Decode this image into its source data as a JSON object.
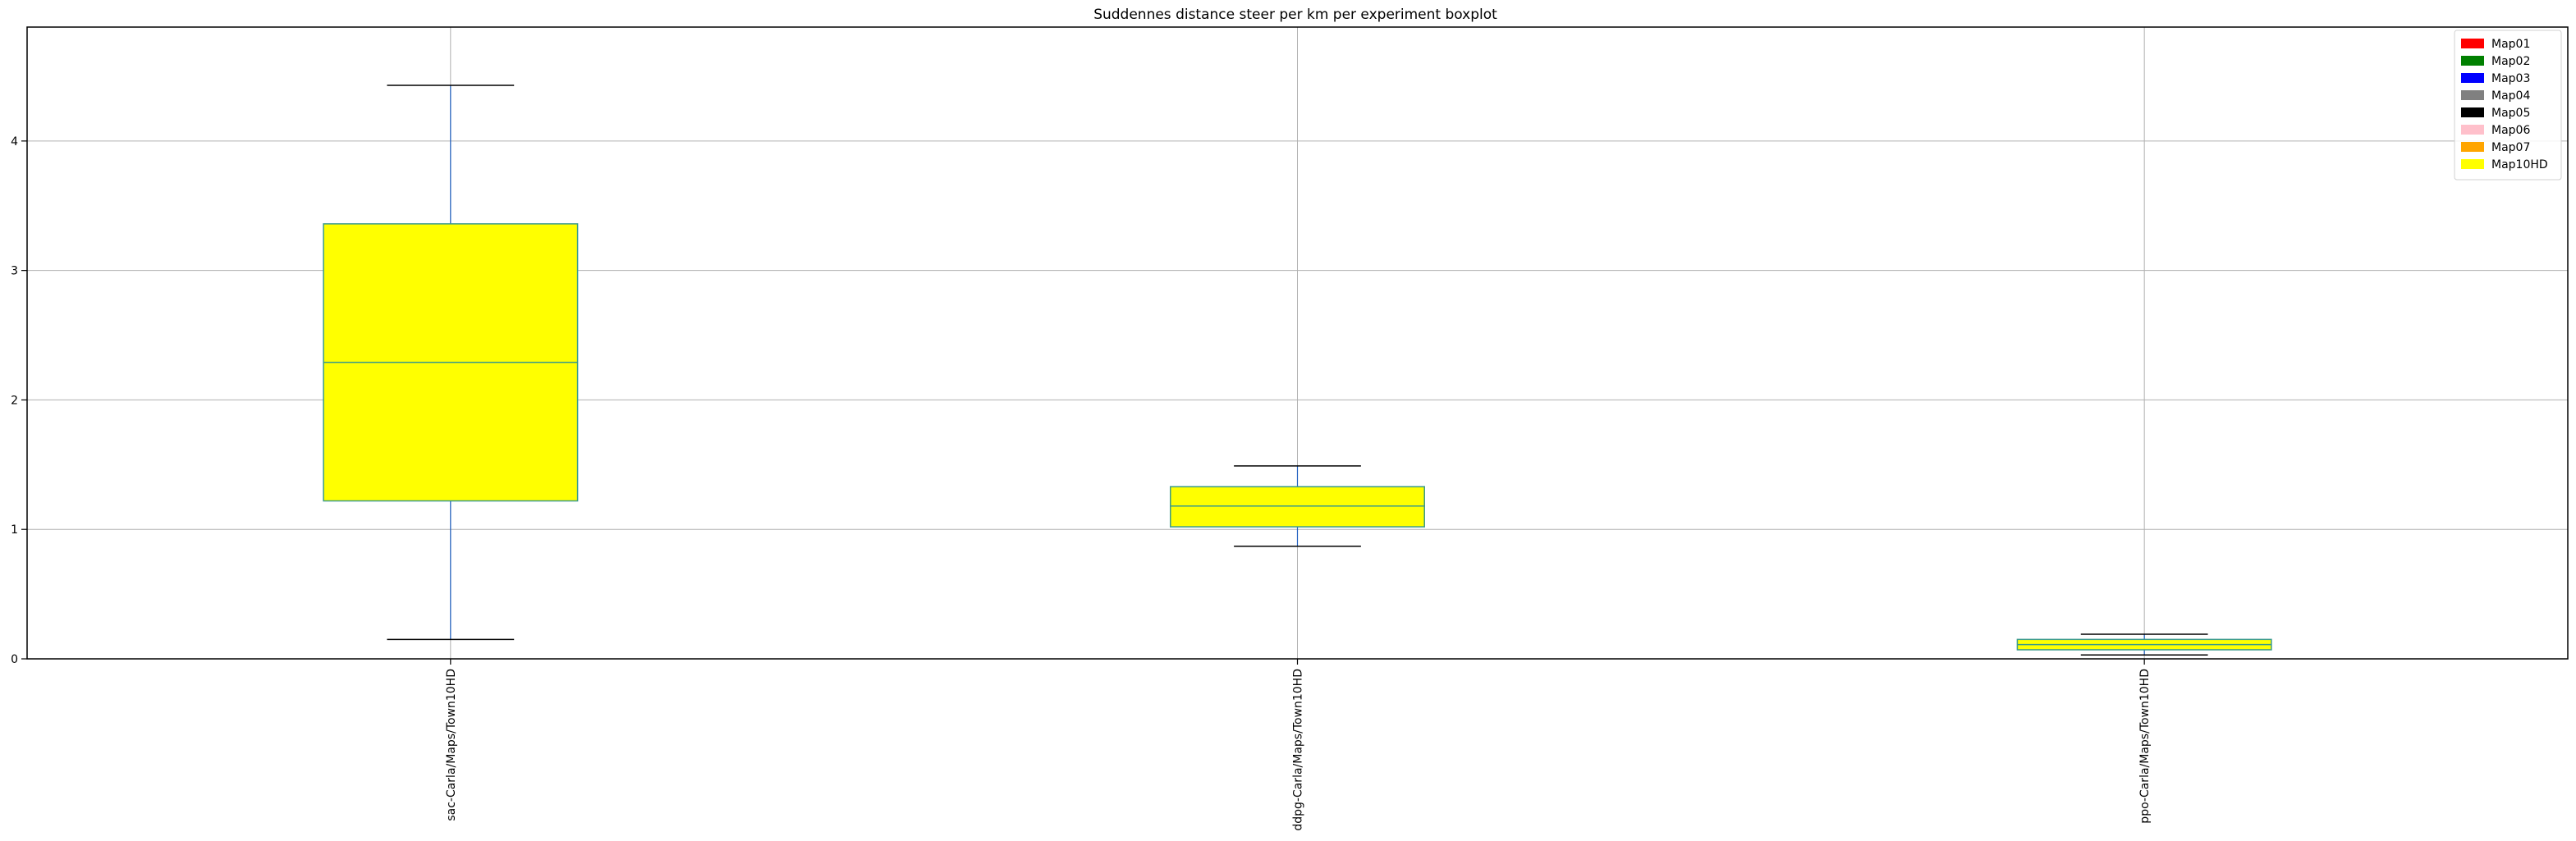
{
  "chart_data": {
    "type": "boxplot",
    "title": "Suddennes distance steer per km per experiment boxplot",
    "xlabel": "",
    "ylabel": "",
    "ylim": [
      0,
      4.88
    ],
    "yticks": [
      0,
      1,
      2,
      3,
      4
    ],
    "grid": true,
    "categories": [
      "sac-Carla/Maps/Town10HD",
      "ddpg-Carla/Maps/Town10HD",
      "ppo-Carla/Maps/Town10HD"
    ],
    "boxes": [
      {
        "whisker_low": 0.15,
        "q1": 1.22,
        "median": 2.29,
        "q3": 3.36,
        "whisker_high": 4.43
      },
      {
        "whisker_low": 0.87,
        "q1": 1.02,
        "median": 1.18,
        "q3": 1.33,
        "whisker_high": 1.49
      },
      {
        "whisker_low": 0.03,
        "q1": 0.07,
        "median": 0.11,
        "q3": 0.15,
        "whisker_high": 0.19
      }
    ],
    "box_fill": "#ffff00",
    "box_edge": "#3a9a8a",
    "whisker_color": "#1f5fbf",
    "cap_color": "#000000",
    "legend_position": "top-right",
    "legend": [
      {
        "label": "Map01",
        "color": "#ff0000"
      },
      {
        "label": "Map02",
        "color": "#008000"
      },
      {
        "label": "Map03",
        "color": "#0000ff"
      },
      {
        "label": "Map04",
        "color": "#808080"
      },
      {
        "label": "Map05",
        "color": "#000000"
      },
      {
        "label": "Map06",
        "color": "#ffc0cb"
      },
      {
        "label": "Map07",
        "color": "#ffa500"
      },
      {
        "label": "Map10HD",
        "color": "#ffff00"
      }
    ]
  }
}
